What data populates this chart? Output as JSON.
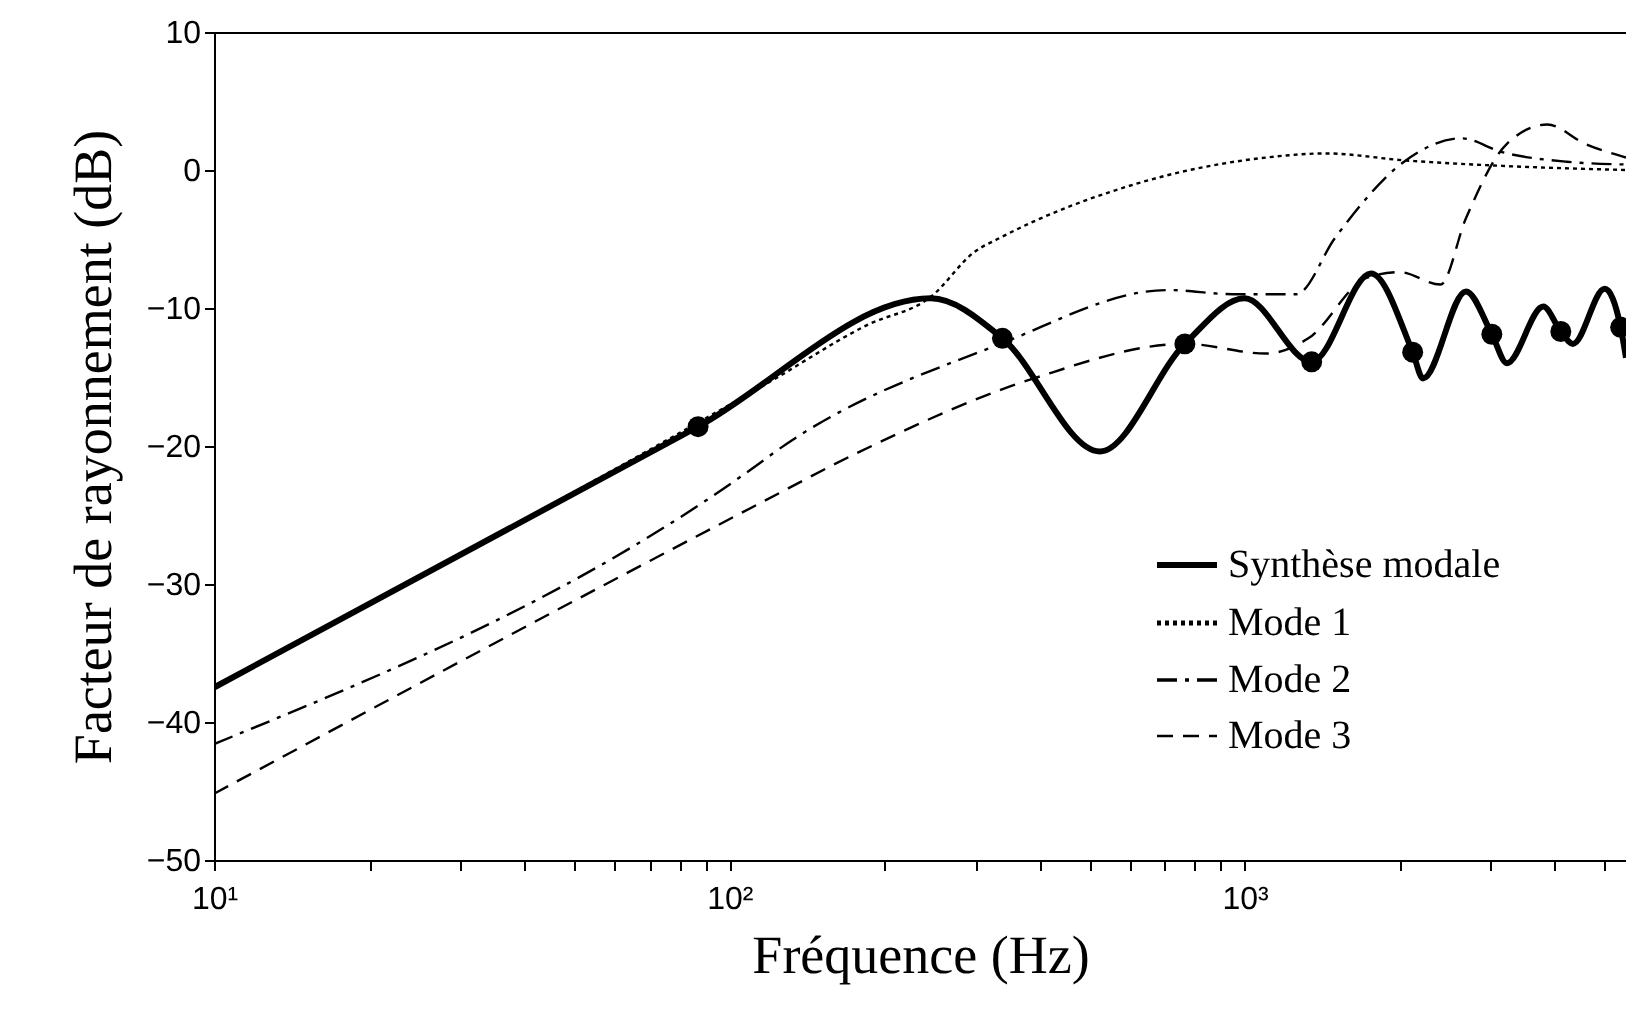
{
  "chart_data": {
    "type": "line",
    "xlabel": "Fréquence (Hz)",
    "ylabel": "Facteur de rayonnement (dB)",
    "log": "x",
    "xlim": [
      10,
      5500
    ],
    "ylim": [
      -50,
      10
    ],
    "xticks": [
      {
        "value": 10,
        "label": "10¹"
      },
      {
        "value": 20,
        "label": null
      },
      {
        "value": 30,
        "label": null
      },
      {
        "value": 40,
        "label": null
      },
      {
        "value": 50,
        "label": null
      },
      {
        "value": 60,
        "label": null
      },
      {
        "value": 70,
        "label": null
      },
      {
        "value": 80,
        "label": null
      },
      {
        "value": 90,
        "label": null
      },
      {
        "value": 100,
        "label": "10²"
      },
      {
        "value": 200,
        "label": null
      },
      {
        "value": 300,
        "label": null
      },
      {
        "value": 400,
        "label": null
      },
      {
        "value": 500,
        "label": null
      },
      {
        "value": 600,
        "label": null
      },
      {
        "value": 700,
        "label": null
      },
      {
        "value": 800,
        "label": null
      },
      {
        "value": 900,
        "label": null
      },
      {
        "value": 1000,
        "label": "10³"
      },
      {
        "value": 2000,
        "label": null
      },
      {
        "value": 3000,
        "label": null
      },
      {
        "value": 4000,
        "label": null
      },
      {
        "value": 5000,
        "label": null
      }
    ],
    "yticks": [
      {
        "value": -50,
        "label": "−50"
      },
      {
        "value": -40,
        "label": "−40"
      },
      {
        "value": -30,
        "label": "−30"
      },
      {
        "value": -20,
        "label": "−20"
      },
      {
        "value": -10,
        "label": "−10"
      },
      0,
      10
    ],
    "legend": "bottom right",
    "grid": false,
    "series": [
      {
        "name": "Synthèse modale",
        "color": "#000000",
        "line_style": "solid",
        "x": [
          10,
          87,
          246,
          339,
          524,
          766,
          1000,
          1350,
          1760,
          2120,
          2220,
          2690,
          3020,
          3230,
          3800,
          4110,
          4340,
          5000,
          5370,
          5500
        ],
        "values": [
          -37.5,
          -18.6,
          -9.3,
          -12.2,
          -20.4,
          -12.6,
          -9.3,
          -13.9,
          -7.5,
          -13.2,
          -15.1,
          -8.8,
          -11.9,
          -14,
          -9.9,
          -11.7,
          -12.6,
          -8.6,
          -11.4,
          -13.6
        ]
      },
      {
        "name": "Mode 1",
        "color": "#000000",
        "line_style": "dotted",
        "x": [
          10,
          87,
          118,
          186,
          246,
          300,
          336,
          616,
          1100,
          1440,
          2040,
          3160,
          5500
        ],
        "values": [
          -37.5,
          -18.3,
          -15.5,
          -11.2,
          -9.2,
          -5.9,
          -4.9,
          -1,
          0.9,
          1.2,
          0.7,
          0.3,
          0
        ]
      },
      {
        "name": "Mode 2",
        "color": "#000000",
        "line_style": "dashdot",
        "x": [
          10,
          114,
          123,
          336,
          710,
          950,
          1260,
          1500,
          2040,
          2630,
          3160,
          4220,
          5500
        ],
        "values": [
          -41.6,
          -21.3,
          -20.4,
          -12.6,
          -8.7,
          -9,
          -9,
          -4.9,
          0.6,
          2.3,
          1.3,
          0.6,
          0.4
        ]
      },
      {
        "name": "Mode 3",
        "color": "#000000",
        "line_style": "dashed",
        "x": [
          10,
          114,
          175,
          390,
          766,
          1100,
          1330,
          1730,
          2000,
          2400,
          2690,
          3230,
          3870,
          4580,
          5500
        ],
        "values": [
          -45.2,
          -24.2,
          -20.6,
          -15.1,
          -12.6,
          -13.3,
          -12.2,
          -7.8,
          -7.4,
          -8.3,
          -3.5,
          1.9,
          3.3,
          1.9,
          0.9
        ]
      },
      {
        "type": "scatter",
        "marker": "circle",
        "color": "#000000",
        "x": [
          87,
          339,
          766,
          1350,
          2120,
          3020,
          4110,
          5370
        ],
        "values": [
          -18.6,
          -12.2,
          -12.6,
          -13.9,
          -13.2,
          -11.9,
          -11.7,
          -11.4
        ]
      }
    ]
  }
}
